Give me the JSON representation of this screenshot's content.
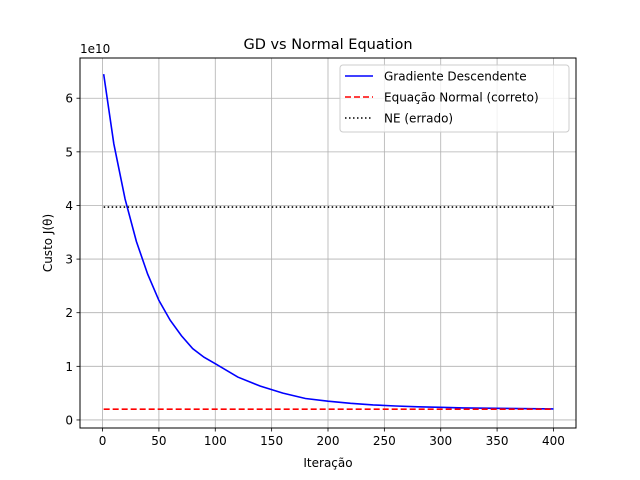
{
  "chart_data": {
    "type": "line",
    "title": "GD vs Normal Equation",
    "xlabel": "Iteração",
    "ylabel": "Custo J(θ)",
    "y_offset_label": "1e10",
    "xlim": [
      -20,
      420
    ],
    "ylim": [
      -0.15,
      6.75
    ],
    "xticks": [
      0,
      50,
      100,
      150,
      200,
      250,
      300,
      350,
      400
    ],
    "yticks": [
      0,
      1,
      2,
      3,
      4,
      5,
      6
    ],
    "grid": true,
    "legend_position": "top-right",
    "series": [
      {
        "name": "Gradiente Descendente",
        "color": "#0000ff",
        "style": "solid",
        "x": [
          1,
          10,
          20,
          30,
          40,
          50,
          60,
          70,
          80,
          90,
          100,
          120,
          140,
          160,
          180,
          200,
          220,
          240,
          260,
          280,
          300,
          320,
          340,
          360,
          380,
          400
        ],
        "y": [
          6.45,
          5.15,
          4.12,
          3.33,
          2.72,
          2.23,
          1.86,
          1.57,
          1.33,
          1.17,
          1.05,
          0.8,
          0.63,
          0.5,
          0.4,
          0.35,
          0.31,
          0.28,
          0.26,
          0.245,
          0.235,
          0.225,
          0.22,
          0.215,
          0.21,
          0.205
        ]
      },
      {
        "name": "Equação Normal (correto)",
        "color": "#ff0000",
        "style": "dashed",
        "x": [
          1,
          400
        ],
        "y": [
          0.2,
          0.2
        ]
      },
      {
        "name": "NE (errado)",
        "color": "#000000",
        "style": "dotted",
        "x": [
          1,
          400
        ],
        "y": [
          3.97,
          3.97
        ]
      }
    ]
  }
}
